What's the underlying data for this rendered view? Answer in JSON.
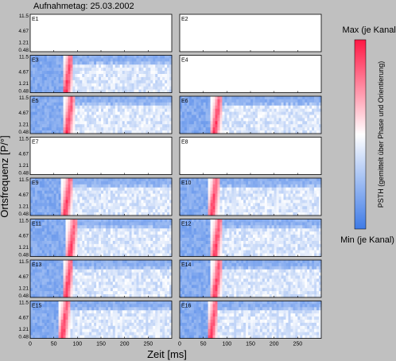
{
  "title": "Aufnahmetag: 25.03.2002",
  "colors": {
    "background": "#c0c0c0",
    "empty_panel": "#ffffff",
    "low": "#3f7be6",
    "mid": "#ffffff",
    "high": "#ff1744"
  },
  "chart_data": {
    "type": "heatmap",
    "title": "Aufnahmetag: 25.03.2002",
    "xlabel": "Zeit [ms]",
    "ylabel": "Ortsfrequenz [P/°]",
    "x_ticks": [
      0,
      50,
      100,
      150,
      200,
      250
    ],
    "xlim": [
      0,
      300
    ],
    "y_ticks": [
      "0.48",
      "1.21",
      "4.67",
      "11.5"
    ],
    "grid": false,
    "legend": "right",
    "colorbar": {
      "max_label": "Max (je Kanal)",
      "min_label": "Min (je Kanal)",
      "label": "PSTH (gemittelt über Phase und Orientierung)"
    },
    "panels": [
      {
        "name": "E1",
        "has_data": false,
        "peak_ms": null
      },
      {
        "name": "E2",
        "has_data": false,
        "peak_ms": null
      },
      {
        "name": "E3",
        "has_data": true,
        "peak_ms": 80
      },
      {
        "name": "E4",
        "has_data": false,
        "peak_ms": null
      },
      {
        "name": "E5",
        "has_data": true,
        "peak_ms": 82
      },
      {
        "name": "E6",
        "has_data": true,
        "peak_ms": 78
      },
      {
        "name": "E7",
        "has_data": false,
        "peak_ms": null
      },
      {
        "name": "E8",
        "has_data": false,
        "peak_ms": null
      },
      {
        "name": "E9",
        "has_data": true,
        "peak_ms": 78
      },
      {
        "name": "E10",
        "has_data": true,
        "peak_ms": 72
      },
      {
        "name": "E11",
        "has_data": true,
        "peak_ms": 88
      },
      {
        "name": "E12",
        "has_data": true,
        "peak_ms": 78
      },
      {
        "name": "E13",
        "has_data": true,
        "peak_ms": 80
      },
      {
        "name": "E14",
        "has_data": true,
        "peak_ms": 78
      },
      {
        "name": "E15",
        "has_data": true,
        "peak_ms": 72
      },
      {
        "name": "E16",
        "has_data": true,
        "peak_ms": 70
      }
    ]
  }
}
